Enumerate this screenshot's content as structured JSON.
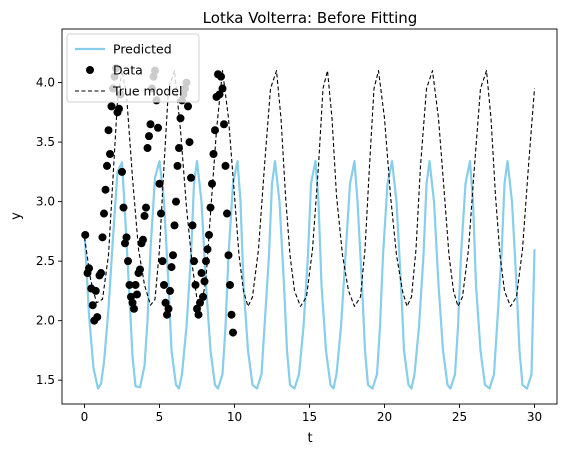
{
  "chart_data": {
    "type": "line",
    "title": "Lotka Volterra: Before Fitting",
    "xlabel": "t",
    "ylabel": "y",
    "xlim": [
      -1.5,
      31.5
    ],
    "ylim": [
      1.3,
      4.45
    ],
    "xticks": [
      0,
      5,
      10,
      15,
      20,
      25,
      30
    ],
    "xtick_labels": [
      "0",
      "5",
      "10",
      "15",
      "20",
      "25",
      "30"
    ],
    "yticks": [
      1.5,
      2.0,
      2.5,
      3.0,
      3.5,
      4.0
    ],
    "ytick_labels": [
      "1.5",
      "2.0",
      "2.5",
      "3.0",
      "3.5",
      "4.0"
    ],
    "grid": false,
    "legend_position": "top-left",
    "colors": {
      "predicted": "#87ceeb",
      "data": "#000000",
      "true_model": "#000000"
    },
    "series": [
      {
        "name": "Predicted",
        "style": "solid",
        "x": [
          0.0,
          0.3,
          0.6,
          0.9,
          1.1,
          1.3,
          1.6,
          1.9,
          2.2,
          2.5,
          2.7,
          3.0,
          3.2,
          3.4,
          3.7,
          4.0,
          4.2,
          4.4,
          4.7,
          5.0,
          5.3,
          5.6,
          5.8,
          6.1,
          6.3,
          6.5,
          6.8,
          7.1,
          7.3,
          7.5,
          7.8,
          8.1,
          8.4,
          8.7,
          8.9,
          9.2,
          9.4,
          9.6,
          9.9,
          10.2,
          10.4,
          10.6,
          10.9,
          11.2,
          11.5,
          11.8,
          12.0,
          12.3,
          12.5,
          12.7,
          13.0,
          13.3,
          13.5,
          13.7,
          14.0,
          14.3,
          14.6,
          14.9,
          15.1,
          15.4,
          15.6,
          15.8,
          16.1,
          16.4,
          16.6,
          16.8,
          17.1,
          17.4,
          17.7,
          18.0,
          18.2,
          18.5,
          18.7,
          18.9,
          19.2,
          19.5,
          19.7,
          19.9,
          20.2,
          20.5,
          20.8,
          21.1,
          21.3,
          21.6,
          21.8,
          22.0,
          22.3,
          22.6,
          22.8,
          23.0,
          23.3,
          23.6,
          23.9,
          24.2,
          24.4,
          24.7,
          24.9,
          25.1,
          25.4,
          25.7,
          25.9,
          26.1,
          26.4,
          26.7,
          27.0,
          27.3,
          27.5,
          27.8,
          28.0,
          28.2,
          28.5,
          28.8,
          29.0,
          29.2,
          29.5,
          29.8,
          30.0
        ],
        "y": [
          2.75,
          2.05,
          1.6,
          1.43,
          1.47,
          1.65,
          2.1,
          2.7,
          3.25,
          3.33,
          2.9,
          2.2,
          1.7,
          1.45,
          1.44,
          1.62,
          2.0,
          2.6,
          3.2,
          3.34,
          3.0,
          2.3,
          1.75,
          1.46,
          1.43,
          1.55,
          1.95,
          2.55,
          3.15,
          3.34,
          3.0,
          2.3,
          1.75,
          1.46,
          1.43,
          1.55,
          1.95,
          2.55,
          3.15,
          3.34,
          3.0,
          2.3,
          1.75,
          1.46,
          1.43,
          1.55,
          1.95,
          2.55,
          3.15,
          3.34,
          3.0,
          2.3,
          1.75,
          1.46,
          1.43,
          1.55,
          1.95,
          2.55,
          3.15,
          3.34,
          3.0,
          2.3,
          1.75,
          1.46,
          1.43,
          1.55,
          1.95,
          2.55,
          3.15,
          3.34,
          3.0,
          2.3,
          1.75,
          1.46,
          1.43,
          1.55,
          1.95,
          2.55,
          3.15,
          3.34,
          3.0,
          2.3,
          1.75,
          1.46,
          1.43,
          1.55,
          1.95,
          2.55,
          3.15,
          3.34,
          3.0,
          2.3,
          1.75,
          1.46,
          1.43,
          1.55,
          1.95,
          2.55,
          3.15,
          3.34,
          3.0,
          2.3,
          1.75,
          1.46,
          1.43,
          1.55,
          1.95,
          2.55,
          3.15,
          3.34,
          3.0,
          2.3,
          1.75,
          1.46,
          1.43,
          1.55,
          2.6
        ]
      },
      {
        "name": "True model",
        "style": "dashed",
        "x": [
          0.0,
          0.4,
          0.8,
          1.2,
          1.6,
          1.9,
          2.2,
          2.5,
          2.8,
          3.2,
          3.6,
          4.0,
          4.4,
          4.7,
          5.0,
          5.3,
          5.6,
          6.0,
          6.4,
          6.8,
          7.2,
          7.5,
          7.8,
          8.1,
          8.4,
          8.8,
          9.2,
          9.6,
          10.0,
          10.3,
          10.6,
          10.9,
          11.2,
          11.6,
          12.0,
          12.4,
          12.8,
          13.1,
          13.4,
          13.7,
          14.0,
          14.4,
          14.8,
          15.2,
          15.6,
          15.9,
          16.2,
          16.5,
          16.8,
          17.2,
          17.6,
          18.0,
          18.4,
          18.7,
          19.0,
          19.3,
          19.6,
          20.0,
          20.4,
          20.8,
          21.2,
          21.5,
          21.8,
          22.1,
          22.4,
          22.8,
          23.2,
          23.6,
          24.0,
          24.3,
          24.6,
          24.9,
          25.2,
          25.6,
          26.0,
          26.4,
          26.8,
          27.1,
          27.4,
          27.7,
          28.0,
          28.4,
          28.8,
          29.2,
          29.6,
          30.0
        ],
        "y": [
          2.7,
          2.35,
          2.15,
          2.18,
          2.55,
          3.2,
          3.85,
          4.1,
          3.9,
          3.2,
          2.6,
          2.3,
          2.13,
          2.18,
          2.6,
          3.3,
          3.95,
          4.1,
          3.6,
          2.95,
          2.45,
          2.18,
          2.13,
          2.35,
          2.9,
          3.6,
          4.1,
          3.7,
          3.05,
          2.55,
          2.25,
          2.12,
          2.2,
          2.6,
          3.3,
          3.95,
          4.1,
          3.7,
          3.05,
          2.55,
          2.25,
          2.12,
          2.2,
          2.6,
          3.3,
          3.95,
          4.1,
          3.7,
          3.05,
          2.55,
          2.25,
          2.12,
          2.2,
          2.6,
          3.3,
          3.95,
          4.1,
          3.7,
          3.05,
          2.55,
          2.25,
          2.12,
          2.2,
          2.6,
          3.3,
          3.95,
          4.1,
          3.7,
          3.05,
          2.55,
          2.25,
          2.12,
          2.2,
          2.6,
          3.3,
          3.95,
          4.1,
          3.7,
          3.05,
          2.55,
          2.25,
          2.12,
          2.2,
          2.6,
          3.3,
          3.95
        ]
      },
      {
        "name": "Data",
        "style": "markers",
        "x": [
          0.05,
          0.2,
          0.3,
          0.45,
          0.55,
          0.65,
          0.75,
          0.85,
          1.0,
          1.1,
          1.2,
          1.3,
          1.4,
          1.5,
          1.6,
          1.7,
          1.8,
          1.9,
          2.0,
          2.1,
          2.2,
          2.3,
          2.4,
          2.5,
          2.6,
          2.7,
          2.8,
          2.9,
          3.0,
          3.1,
          3.2,
          3.3,
          3.4,
          3.5,
          3.6,
          3.7,
          3.8,
          3.9,
          4.0,
          4.1,
          4.2,
          4.3,
          4.4,
          4.5,
          4.6,
          4.7,
          4.8,
          4.9,
          5.0,
          5.1,
          5.2,
          5.3,
          5.4,
          5.5,
          5.6,
          5.7,
          5.8,
          5.9,
          6.0,
          6.1,
          6.2,
          6.3,
          6.4,
          6.5,
          6.6,
          6.7,
          6.8,
          6.9,
          7.0,
          7.1,
          7.2,
          7.3,
          7.4,
          7.5,
          7.6,
          7.7,
          7.8,
          7.9,
          8.0,
          8.1,
          8.2,
          8.3,
          8.4,
          8.5,
          8.6,
          8.7,
          8.8,
          8.9,
          9.0,
          9.1,
          9.2,
          9.3,
          9.4,
          9.5,
          9.6,
          9.7,
          9.8,
          9.9
        ],
        "y": [
          2.72,
          2.4,
          2.44,
          2.27,
          2.13,
          2.0,
          2.25,
          2.03,
          2.38,
          2.4,
          2.7,
          2.9,
          3.1,
          3.3,
          3.6,
          3.4,
          3.8,
          3.95,
          4.05,
          4.12,
          3.75,
          3.78,
          3.9,
          3.25,
          2.95,
          2.65,
          2.7,
          2.5,
          2.3,
          2.2,
          2.15,
          2.1,
          2.3,
          2.22,
          2.4,
          2.43,
          2.65,
          2.68,
          2.88,
          2.95,
          3.45,
          3.55,
          3.65,
          3.95,
          4.05,
          4.1,
          3.85,
          3.62,
          3.15,
          2.9,
          2.5,
          2.3,
          2.15,
          2.05,
          2.1,
          2.25,
          2.45,
          2.55,
          2.8,
          3.0,
          3.3,
          3.45,
          3.7,
          3.85,
          3.9,
          3.95,
          4.0,
          3.8,
          3.5,
          3.2,
          2.8,
          2.5,
          2.3,
          2.1,
          2.05,
          2.15,
          2.4,
          2.2,
          2.33,
          2.5,
          2.6,
          2.72,
          2.95,
          3.15,
          3.4,
          3.6,
          3.88,
          4.07,
          3.9,
          4.05,
          3.95,
          3.65,
          3.3,
          2.9,
          2.55,
          2.3,
          2.05,
          1.9
        ]
      }
    ],
    "legend": [
      "Predicted",
      "Data",
      "True model"
    ]
  }
}
